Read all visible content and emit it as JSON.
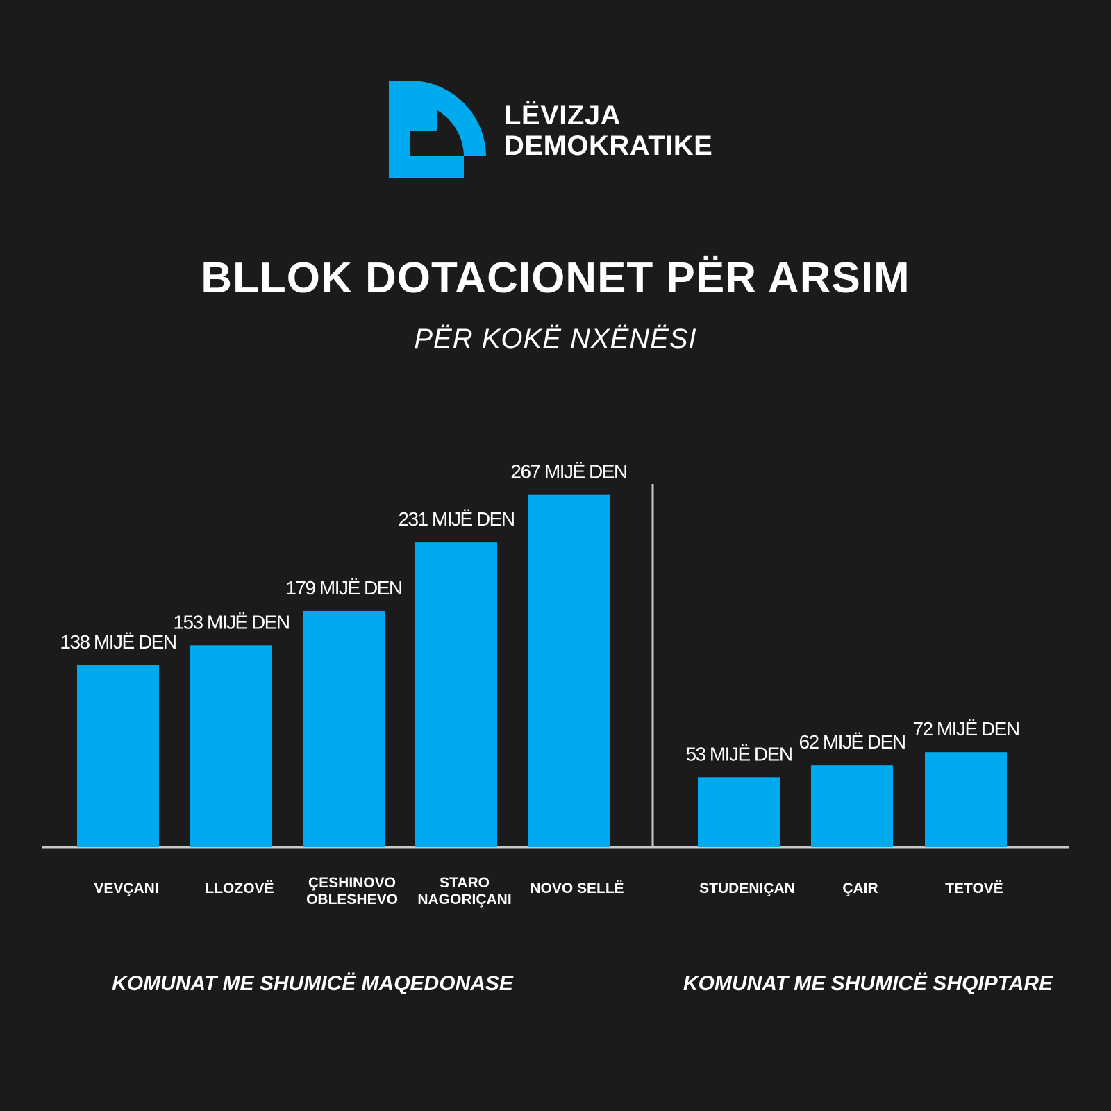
{
  "brand": {
    "line1": "LËVIZJA",
    "line2": "DEMOKRATIKE",
    "accent_color": "#00aaee"
  },
  "header": {
    "title": "BLLOK DOTACIONET PËR ARSIM",
    "subtitle": "PËR KOKË NXËNËSI"
  },
  "chart_data": {
    "type": "bar",
    "bar_color": "#00aaee",
    "axis_color": "#c9c9c9",
    "unit": "MIJË DEN",
    "groups": [
      {
        "name": "KOMUNAT ME SHUMICË MAQEDONASE",
        "bars": [
          {
            "category": [
              "VEVÇANI"
            ],
            "value": 138,
            "label": "138 MIJË DEN"
          },
          {
            "category": [
              "LLOZOVË"
            ],
            "value": 153,
            "label": "153 MIJË DEN"
          },
          {
            "category": [
              "ÇESHINOVO",
              "OBLESHEVO"
            ],
            "value": 179,
            "label": "179 MIJË DEN"
          },
          {
            "category": [
              "STARO",
              "NAGORIÇANI"
            ],
            "value": 231,
            "label": "231 MIJË DEN"
          },
          {
            "category": [
              "NOVO SELLË"
            ],
            "value": 267,
            "label": "267 MIJË DEN"
          }
        ]
      },
      {
        "name": "KOMUNAT ME SHUMICË SHQIPTARE",
        "bars": [
          {
            "category": [
              "STUDENIÇAN"
            ],
            "value": 53,
            "label": "53 MIJË DEN"
          },
          {
            "category": [
              "ÇAIR"
            ],
            "value": 62,
            "label": "62 MIJË DEN"
          },
          {
            "category": [
              "TETOVË"
            ],
            "value": 72,
            "label": "72 MIJË DEN"
          }
        ]
      }
    ],
    "grid": false,
    "legend": "none"
  }
}
